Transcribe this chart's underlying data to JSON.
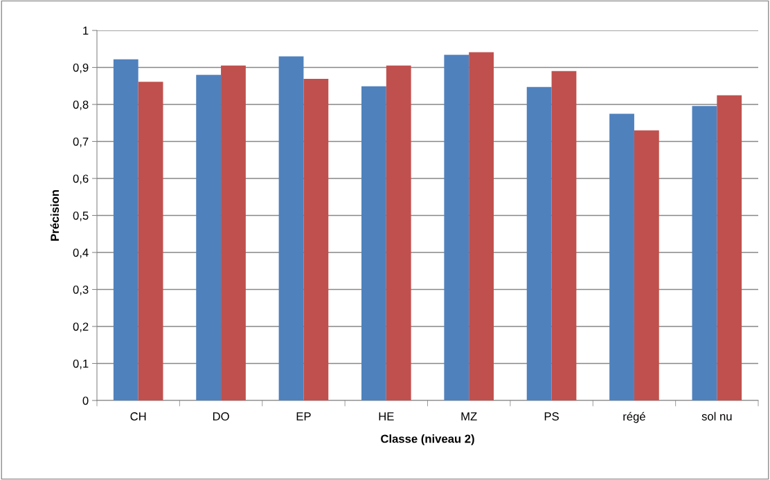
{
  "chart_data": {
    "type": "bar",
    "xlabel": "Classe (niveau 2)",
    "ylabel": "Précision",
    "categories": [
      "CH",
      "DO",
      "EP",
      "HE",
      "MZ",
      "PS",
      "régé",
      "sol nu"
    ],
    "series": [
      {
        "color": "#4f81bd",
        "values": [
          0.922,
          0.88,
          0.93,
          0.849,
          0.934,
          0.847,
          0.775,
          0.796
        ]
      },
      {
        "color": "#c0504d",
        "values": [
          0.861,
          0.905,
          0.869,
          0.905,
          0.941,
          0.89,
          0.73,
          0.825
        ]
      }
    ],
    "ylim": [
      0,
      1
    ],
    "yticks": [
      0,
      {
        "value": 0.1,
        "label": "0,1"
      },
      {
        "value": 0.2,
        "label": "0,2"
      },
      {
        "value": 0.3,
        "label": "0,3"
      },
      {
        "value": 0.4,
        "label": "0,4"
      },
      {
        "value": 0.5,
        "label": "0,5"
      },
      {
        "value": 0.6,
        "label": "0,6"
      },
      {
        "value": 0.7,
        "label": "0,7"
      },
      {
        "value": 0.8,
        "label": "0,8"
      },
      {
        "value": 0.9,
        "label": "0,9"
      },
      1
    ],
    "grid": "y",
    "legend": false
  }
}
